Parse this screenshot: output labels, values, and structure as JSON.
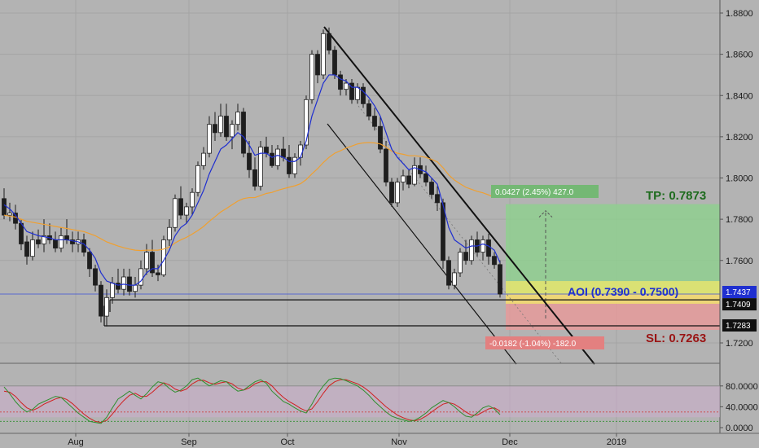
{
  "colors": {
    "background": "#b3b3b3",
    "grid": "#a4a4a4",
    "candle_up": "#ffffff",
    "candle_down": "#1e1e1e",
    "ema_fast": "#1f2fd0",
    "ema_slow": "#f0a030",
    "target_zone": "#8fcf8f",
    "stop_zone": "#e59a9a",
    "aoi_zone": "#f2e86a",
    "tp_text": "#1e6b1e",
    "sl_text": "#9a1515",
    "aoi_text": "#1f2fd0",
    "stoch_k": "#2f8f2f",
    "stoch_d": "#d02020",
    "stoch_band": "#c9aec9"
  },
  "chart_data": {
    "type": "candlestick",
    "x_labels": [
      "Aug",
      "Sep",
      "Oct",
      "Nov",
      "Dec",
      "2019"
    ],
    "y_ticks": [
      "1.8800",
      "1.8600",
      "1.8400",
      "1.8200",
      "1.8000",
      "1.7800",
      "1.7600",
      "1.7200"
    ],
    "y_range": [
      1.712,
      1.8888
    ],
    "price_tags": [
      {
        "value": 1.7437,
        "label": "1.7437"
      },
      {
        "value": 1.7409,
        "label": "1.7409"
      },
      {
        "value": 1.7283,
        "label": "1.7283"
      }
    ],
    "annotations": {
      "tp": "TP: 0.7873",
      "sl": "SL: 0.7263",
      "aoi": "AOI (0.7390 - 0.7500)",
      "target_box": "0.0427 (2.45%) 427.0",
      "stop_box": "-0.0182 (-1.04%) -182.0"
    },
    "candles": [
      [
        1.79,
        1.795,
        1.78,
        1.782
      ],
      [
        1.782,
        1.788,
        1.779,
        1.783
      ],
      [
        1.783,
        1.787,
        1.775,
        1.778
      ],
      [
        1.778,
        1.78,
        1.765,
        1.768
      ],
      [
        1.769,
        1.772,
        1.758,
        1.762
      ],
      [
        1.762,
        1.774,
        1.76,
        1.77
      ],
      [
        1.77,
        1.775,
        1.766,
        1.768
      ],
      [
        1.768,
        1.78,
        1.764,
        1.772
      ],
      [
        1.772,
        1.778,
        1.768,
        1.77
      ],
      [
        1.77,
        1.774,
        1.764,
        1.766
      ],
      [
        1.766,
        1.776,
        1.764,
        1.772
      ],
      [
        1.772,
        1.78,
        1.768,
        1.77
      ],
      [
        1.77,
        1.774,
        1.764,
        1.768
      ],
      [
        1.768,
        1.774,
        1.764,
        1.77
      ],
      [
        1.77,
        1.773,
        1.762,
        1.764
      ],
      [
        1.764,
        1.766,
        1.752,
        1.756
      ],
      [
        1.756,
        1.758,
        1.745,
        1.748
      ],
      [
        1.748,
        1.75,
        1.73,
        1.733
      ],
      [
        1.733,
        1.746,
        1.728,
        1.742
      ],
      [
        1.742,
        1.752,
        1.739,
        1.749
      ],
      [
        1.749,
        1.756,
        1.744,
        1.746
      ],
      [
        1.746,
        1.756,
        1.743,
        1.752
      ],
      [
        1.752,
        1.756,
        1.743,
        1.745
      ],
      [
        1.745,
        1.752,
        1.742,
        1.748
      ],
      [
        1.748,
        1.76,
        1.746,
        1.756
      ],
      [
        1.756,
        1.768,
        1.753,
        1.764
      ],
      [
        1.764,
        1.77,
        1.752,
        1.754
      ],
      [
        1.754,
        1.758,
        1.75,
        1.753
      ],
      [
        1.753,
        1.772,
        1.752,
        1.77
      ],
      [
        1.77,
        1.78,
        1.767,
        1.776
      ],
      [
        1.776,
        1.792,
        1.774,
        1.79
      ],
      [
        1.79,
        1.796,
        1.78,
        1.782
      ],
      [
        1.782,
        1.788,
        1.778,
        1.786
      ],
      [
        1.786,
        1.795,
        1.782,
        1.793
      ],
      [
        1.793,
        1.808,
        1.791,
        1.806
      ],
      [
        1.806,
        1.815,
        1.804,
        1.812
      ],
      [
        1.812,
        1.83,
        1.81,
        1.826
      ],
      [
        1.826,
        1.832,
        1.818,
        1.822
      ],
      [
        1.822,
        1.836,
        1.82,
        1.83
      ],
      [
        1.83,
        1.836,
        1.818,
        1.82
      ],
      [
        1.82,
        1.828,
        1.814,
        1.826
      ],
      [
        1.826,
        1.836,
        1.823,
        1.832
      ],
      [
        1.832,
        1.834,
        1.81,
        1.812
      ],
      [
        1.812,
        1.818,
        1.8,
        1.804
      ],
      [
        1.804,
        1.81,
        1.794,
        1.796
      ],
      [
        1.796,
        1.818,
        1.794,
        1.815
      ],
      [
        1.815,
        1.82,
        1.81,
        1.812
      ],
      [
        1.812,
        1.816,
        1.805,
        1.806
      ],
      [
        1.806,
        1.816,
        1.804,
        1.814
      ],
      [
        1.814,
        1.82,
        1.808,
        1.81
      ],
      [
        1.81,
        1.816,
        1.8,
        1.802
      ],
      [
        1.802,
        1.812,
        1.8,
        1.81
      ],
      [
        1.81,
        1.818,
        1.806,
        1.816
      ],
      [
        1.816,
        1.84,
        1.814,
        1.838
      ],
      [
        1.838,
        1.862,
        1.836,
        1.86
      ],
      [
        1.86,
        1.862,
        1.846,
        1.85
      ],
      [
        1.85,
        1.872,
        1.848,
        1.87
      ],
      [
        1.87,
        1.873,
        1.86,
        1.862
      ],
      [
        1.862,
        1.864,
        1.848,
        1.85
      ],
      [
        1.85,
        1.852,
        1.84,
        1.843
      ],
      [
        1.843,
        1.848,
        1.84,
        1.846
      ],
      [
        1.846,
        1.848,
        1.836,
        1.838
      ],
      [
        1.838,
        1.846,
        1.836,
        1.844
      ],
      [
        1.844,
        1.846,
        1.834,
        1.836
      ],
      [
        1.836,
        1.838,
        1.828,
        1.83
      ],
      [
        1.83,
        1.834,
        1.823,
        1.825
      ],
      [
        1.825,
        1.83,
        1.812,
        1.814
      ],
      [
        1.814,
        1.818,
        1.796,
        1.798
      ],
      [
        1.798,
        1.8,
        1.786,
        1.788
      ],
      [
        1.788,
        1.8,
        1.786,
        1.798
      ],
      [
        1.798,
        1.804,
        1.794,
        1.801
      ],
      [
        1.801,
        1.804,
        1.795,
        1.797
      ],
      [
        1.797,
        1.81,
        1.796,
        1.806
      ],
      [
        1.806,
        1.81,
        1.8,
        1.802
      ],
      [
        1.802,
        1.806,
        1.796,
        1.798
      ],
      [
        1.798,
        1.8,
        1.79,
        1.792
      ],
      [
        1.792,
        1.796,
        1.784,
        1.788
      ],
      [
        1.788,
        1.79,
        1.756,
        1.76
      ],
      [
        1.76,
        1.762,
        1.746,
        1.748
      ],
      [
        1.748,
        1.756,
        1.746,
        1.754
      ],
      [
        1.754,
        1.766,
        1.752,
        1.764
      ],
      [
        1.764,
        1.77,
        1.758,
        1.76
      ],
      [
        1.76,
        1.772,
        1.758,
        1.77
      ],
      [
        1.77,
        1.774,
        1.762,
        1.764
      ],
      [
        1.764,
        1.772,
        1.76,
        1.77
      ],
      [
        1.77,
        1.773,
        1.758,
        1.762
      ],
      [
        1.762,
        1.764,
        1.756,
        1.758
      ],
      [
        1.758,
        1.76,
        1.742,
        1.7437
      ]
    ],
    "ema_fast": [
      1.787,
      1.785,
      1.782,
      1.778,
      1.774,
      1.773,
      1.772,
      1.7715,
      1.771,
      1.77,
      1.77,
      1.77,
      1.7695,
      1.769,
      1.768,
      1.765,
      1.761,
      1.754,
      1.75,
      1.749,
      1.748,
      1.7485,
      1.748,
      1.748,
      1.75,
      1.754,
      1.756,
      1.756,
      1.76,
      1.765,
      1.772,
      1.776,
      1.778,
      1.782,
      1.788,
      1.794,
      1.802,
      1.808,
      1.814,
      1.816,
      1.819,
      1.822,
      1.82,
      1.816,
      1.811,
      1.812,
      1.812,
      1.81,
      1.811,
      1.81,
      1.808,
      1.808,
      1.81,
      1.818,
      1.83,
      1.838,
      1.846,
      1.85,
      1.85,
      1.848,
      1.847,
      1.844,
      1.844,
      1.842,
      1.839,
      1.835,
      1.83,
      1.822,
      1.814,
      1.81,
      1.807,
      1.804,
      1.805,
      1.804,
      1.803,
      1.8,
      1.797,
      1.787,
      1.776,
      1.77,
      1.768,
      1.766,
      1.767,
      1.767,
      1.768,
      1.767,
      1.765,
      1.759
    ],
    "ema_slow": [
      1.782,
      1.7815,
      1.781,
      1.78,
      1.779,
      1.7785,
      1.778,
      1.7775,
      1.777,
      1.7765,
      1.776,
      1.7755,
      1.775,
      1.7745,
      1.774,
      1.773,
      1.772,
      1.7705,
      1.769,
      1.768,
      1.767,
      1.7662,
      1.7655,
      1.765,
      1.7648,
      1.765,
      1.765,
      1.765,
      1.7655,
      1.7665,
      1.7685,
      1.77,
      1.7712,
      1.7728,
      1.7745,
      1.7765,
      1.779,
      1.7812,
      1.7835,
      1.7852,
      1.787,
      1.7888,
      1.79,
      1.7905,
      1.7905,
      1.7915,
      1.7925,
      1.793,
      1.794,
      1.7948,
      1.7955,
      1.7962,
      1.7972,
      1.7992,
      1.802,
      1.8045,
      1.8075,
      1.81,
      1.812,
      1.8132,
      1.8145,
      1.8155,
      1.8165,
      1.817,
      1.8172,
      1.817,
      1.8165,
      1.815,
      1.813,
      1.812,
      1.8115,
      1.8108,
      1.8108,
      1.8105,
      1.81,
      1.809,
      1.8078,
      1.805,
      1.8015,
      1.799,
      1.7972,
      1.7955,
      1.7945,
      1.7935,
      1.7928,
      1.7918,
      1.7905
    ]
  },
  "stochastic": {
    "ticks": [
      "80.0000",
      "40.0000",
      "0.0000"
    ],
    "k": [
      78,
      65,
      50,
      38,
      30,
      35,
      45,
      50,
      55,
      60,
      58,
      48,
      38,
      28,
      20,
      12,
      10,
      8,
      20,
      38,
      55,
      62,
      70,
      62,
      55,
      65,
      78,
      88,
      85,
      75,
      68,
      72,
      80,
      92,
      95,
      88,
      80,
      85,
      90,
      88,
      78,
      70,
      72,
      80,
      88,
      92,
      85,
      70,
      60,
      50,
      45,
      38,
      32,
      28,
      45,
      65,
      80,
      92,
      95,
      94,
      90,
      85,
      80,
      72,
      62,
      50,
      40,
      30,
      22,
      18,
      15,
      12,
      14,
      20,
      28,
      38,
      45,
      52,
      48,
      40,
      30,
      22,
      20,
      28,
      38,
      42,
      36,
      25
    ],
    "d": [
      70,
      68,
      60,
      48,
      38,
      33,
      38,
      45,
      50,
      55,
      58,
      54,
      46,
      36,
      26,
      18,
      12,
      10,
      14,
      26,
      40,
      52,
      62,
      66,
      60,
      60,
      68,
      78,
      86,
      82,
      74,
      70,
      74,
      84,
      90,
      91,
      86,
      83,
      86,
      88,
      84,
      76,
      72,
      76,
      84,
      88,
      88,
      80,
      68,
      58,
      50,
      44,
      37,
      32,
      36,
      50,
      66,
      80,
      88,
      92,
      92,
      88,
      84,
      78,
      70,
      60,
      50,
      40,
      32,
      24,
      19,
      15,
      13,
      16,
      22,
      30,
      38,
      45,
      48,
      45,
      38,
      30,
      24,
      24,
      30,
      36,
      38,
      32
    ],
    "levels": [
      80,
      20
    ]
  }
}
